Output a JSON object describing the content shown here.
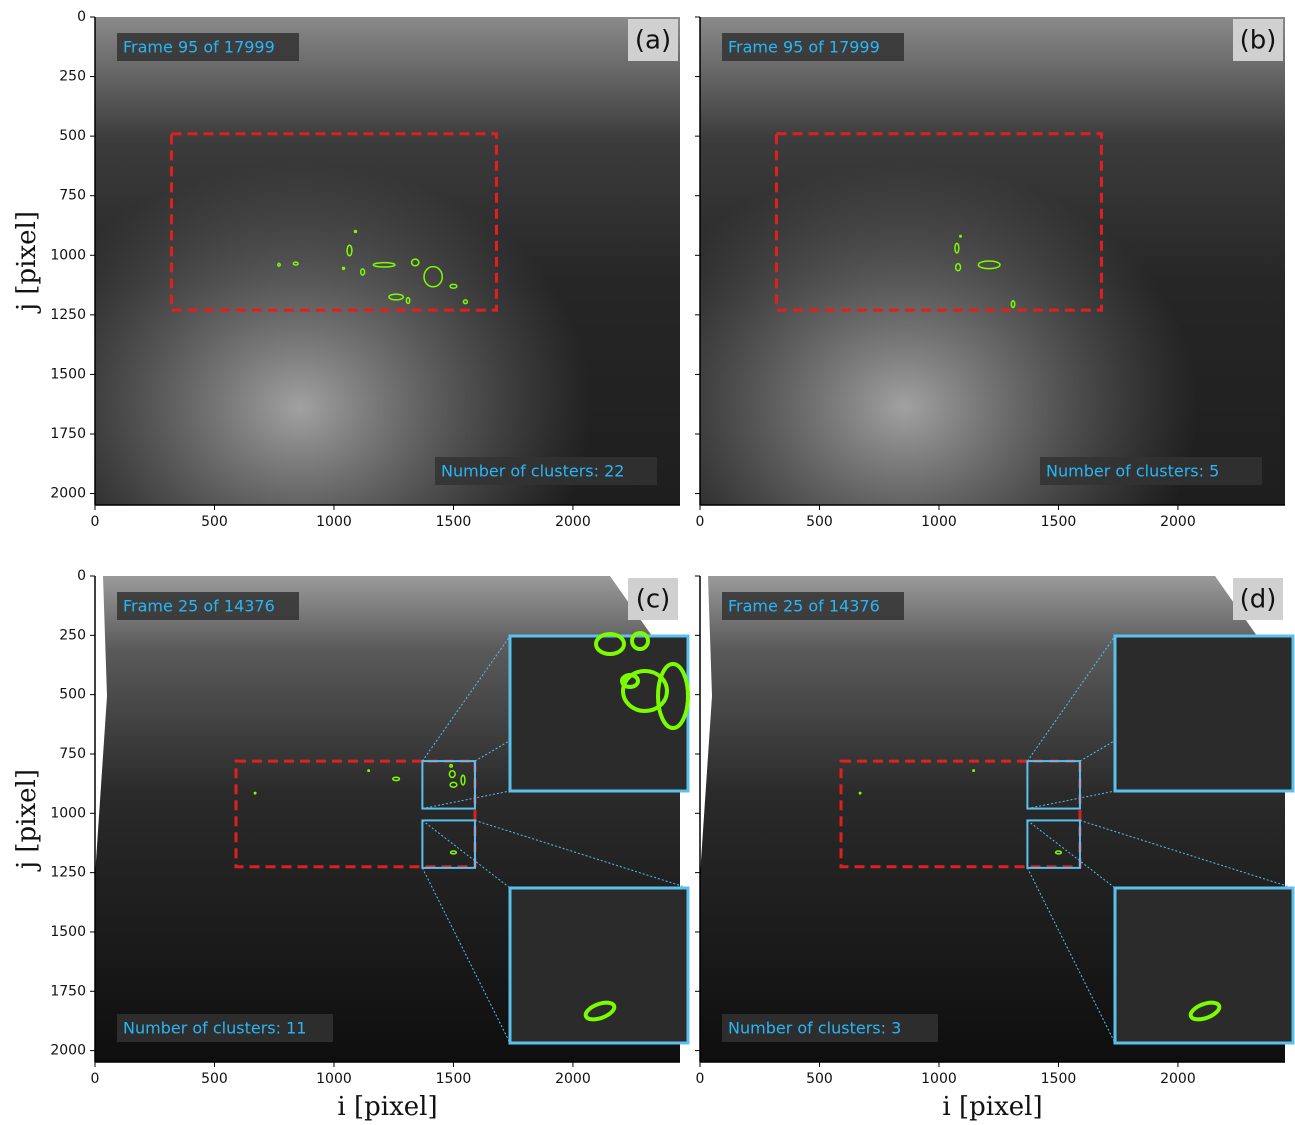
{
  "chart_data": [
    {
      "type": "image",
      "panel_label": "(a)",
      "frame_label": "Frame 95 of 17999",
      "clusters_label": "Number of clusters: 22",
      "ylabel": "j [pixel]",
      "xlim": [
        0,
        2448
      ],
      "ylim": [
        2048,
        0
      ],
      "xticks": [
        0,
        500,
        1000,
        1500,
        2000
      ],
      "yticks": [
        0,
        250,
        500,
        750,
        1000,
        1250,
        1500,
        1750,
        2000
      ],
      "show_ytick_labels": true
    },
    {
      "type": "image",
      "panel_label": "(b)",
      "frame_label": "Frame 95 of 17999",
      "clusters_label": "Number of clusters: 5",
      "xlim": [
        0,
        2448
      ],
      "ylim": [
        2048,
        0
      ],
      "xticks": [
        0,
        500,
        1000,
        1500,
        2000
      ],
      "yticks": [
        0,
        250,
        500,
        750,
        1000,
        1250,
        1500,
        1750,
        2000
      ],
      "show_ytick_labels": false
    },
    {
      "type": "image",
      "panel_label": "(c)",
      "frame_label": "Frame 25 of 14376",
      "clusters_label": "Number of clusters: 11",
      "ylabel": "j [pixel]",
      "xlabel": "i [pixel]",
      "xlim": [
        0,
        2448
      ],
      "ylim": [
        2048,
        0
      ],
      "xticks": [
        0,
        500,
        1000,
        1500,
        2000
      ],
      "yticks": [
        0,
        250,
        500,
        750,
        1000,
        1250,
        1500,
        1750,
        2000
      ],
      "show_ytick_labels": true
    },
    {
      "type": "image",
      "panel_label": "(d)",
      "frame_label": "Frame 25 of 14376",
      "clusters_label": "Number of clusters: 3",
      "xlabel": "i [pixel]",
      "xlim": [
        0,
        2448
      ],
      "ylim": [
        2048,
        0
      ],
      "xticks": [
        0,
        500,
        1000,
        1500,
        2000
      ],
      "yticks": [
        0,
        250,
        500,
        750,
        1000,
        1250,
        1500,
        1750,
        2000
      ],
      "show_ytick_labels": false
    }
  ]
}
